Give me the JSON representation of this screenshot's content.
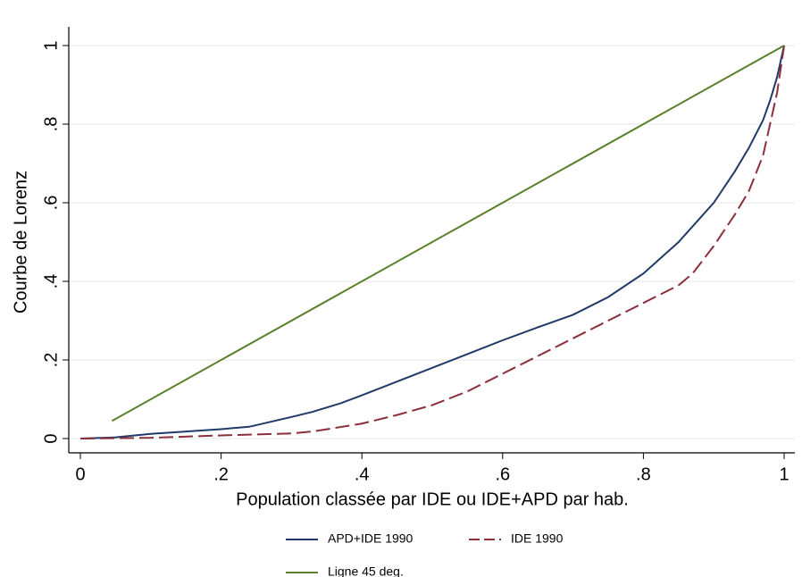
{
  "chart_data": {
    "type": "line",
    "x_label": "Population classée par IDE ou IDE+APD par hab.",
    "y_label": "Courbe de Lorenz",
    "xlim": [
      0,
      1
    ],
    "ylim": [
      0,
      1
    ],
    "xticks": [
      0,
      {
        "value": 0.2,
        "label": ".2"
      },
      {
        "value": 0.4,
        "label": ".4"
      },
      {
        "value": 0.6,
        "label": ".6"
      },
      {
        "value": 0.8,
        "label": ".8"
      },
      1
    ],
    "yticks": [
      0,
      {
        "value": 0.2,
        "label": ".2"
      },
      {
        "value": 0.4,
        "label": ".4"
      },
      {
        "value": 0.6,
        "label": ".6"
      },
      {
        "value": 0.8,
        "label": ".8"
      },
      1
    ],
    "grid": true,
    "series": [
      {
        "name": "APD+IDE 1990",
        "color": "#1f3a68",
        "dash": false,
        "x": [
          0,
          0.05,
          0.1,
          0.15,
          0.2,
          0.24,
          0.3,
          0.33,
          0.37,
          0.4,
          0.45,
          0.5,
          0.55,
          0.6,
          0.65,
          0.7,
          0.75,
          0.8,
          0.85,
          0.9,
          0.93,
          0.95,
          0.97,
          0.98,
          0.99,
          1
        ],
        "values": [
          0,
          0.003,
          0.012,
          0.018,
          0.024,
          0.03,
          0.055,
          0.068,
          0.09,
          0.11,
          0.145,
          0.18,
          0.215,
          0.25,
          0.283,
          0.315,
          0.36,
          0.42,
          0.5,
          0.6,
          0.68,
          0.74,
          0.81,
          0.86,
          0.92,
          1
        ]
      },
      {
        "name": "IDE 1990",
        "color": "#8b2f3c",
        "dash": true,
        "x": [
          0,
          0.1,
          0.2,
          0.3,
          0.33,
          0.4,
          0.45,
          0.5,
          0.55,
          0.6,
          0.65,
          0.7,
          0.75,
          0.8,
          0.85,
          0.87,
          0.9,
          0.93,
          0.95,
          0.97,
          0.98,
          0.99,
          1
        ],
        "values": [
          0,
          0.002,
          0.008,
          0.013,
          0.018,
          0.038,
          0.06,
          0.085,
          0.12,
          0.165,
          0.21,
          0.255,
          0.3,
          0.345,
          0.39,
          0.42,
          0.49,
          0.57,
          0.63,
          0.72,
          0.8,
          0.88,
          1
        ]
      },
      {
        "name": "Ligne 45 deg.",
        "color": "#5a7f2a",
        "dash": false,
        "x": [
          0.045,
          1
        ],
        "values": [
          0.045,
          1
        ]
      }
    ]
  }
}
